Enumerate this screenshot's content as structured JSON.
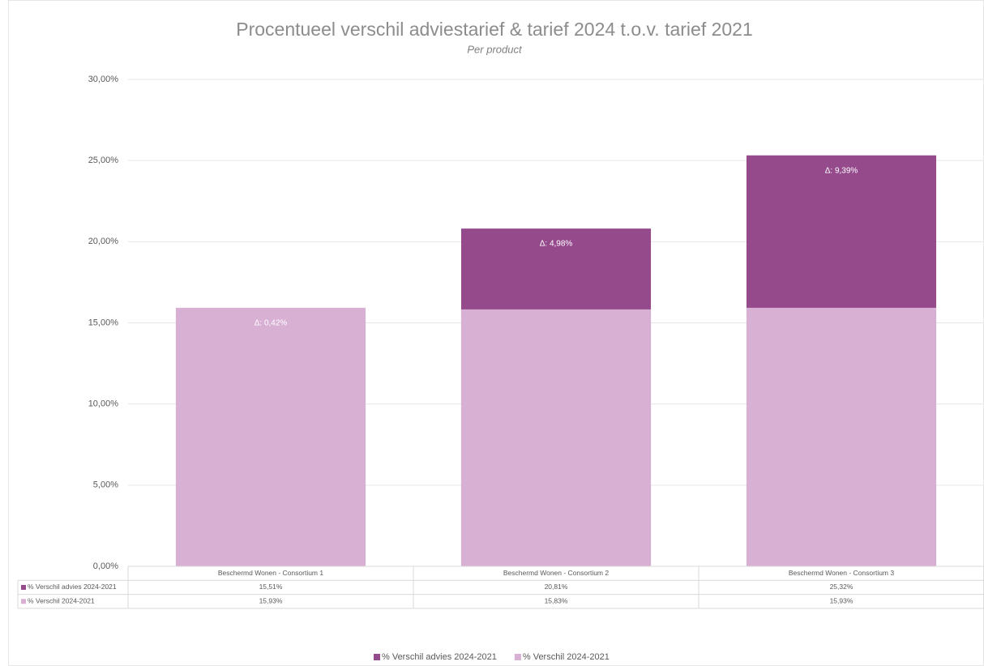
{
  "chart_data": {
    "type": "bar",
    "barmode": "overlay",
    "title": "Procentueel verschil adviestarief & tarief 2024 t.o.v. tarief 2021",
    "subtitle": "Per product",
    "categories": [
      "Beschermd Wonen - Consortium 1",
      "Beschermd Wonen - Consortium 2",
      "Beschermd Wonen - Consortium 3"
    ],
    "series": [
      {
        "name": "% Verschil advies 2024-2021",
        "color": "#954a8c",
        "values": [
          15.51,
          20.81,
          25.32
        ],
        "value_labels": [
          "15,51%",
          "20,81%",
          "25,32%"
        ]
      },
      {
        "name": "% Verschil  2024-2021",
        "color": "#d8b0d4",
        "values": [
          15.93,
          15.83,
          15.93
        ],
        "value_labels": [
          "15,93%",
          "15,83%",
          "15,93%"
        ]
      }
    ],
    "annotations": [
      "Δ: 0,42%",
      "Δ: 4,98%",
      "Δ: 9,39%"
    ],
    "ylim": [
      0,
      30
    ],
    "yticks": [
      {
        "value": 0,
        "label": "0,00%"
      },
      {
        "value": 5,
        "label": "5,00%"
      },
      {
        "value": 10,
        "label": "10,00%"
      },
      {
        "value": 15,
        "label": "15,00%"
      },
      {
        "value": 20,
        "label": "20,00%"
      },
      {
        "value": 25,
        "label": "25,00%"
      },
      {
        "value": 30,
        "label": "30,00%"
      }
    ],
    "grid": true,
    "data_table": true,
    "legend": "bottom"
  }
}
